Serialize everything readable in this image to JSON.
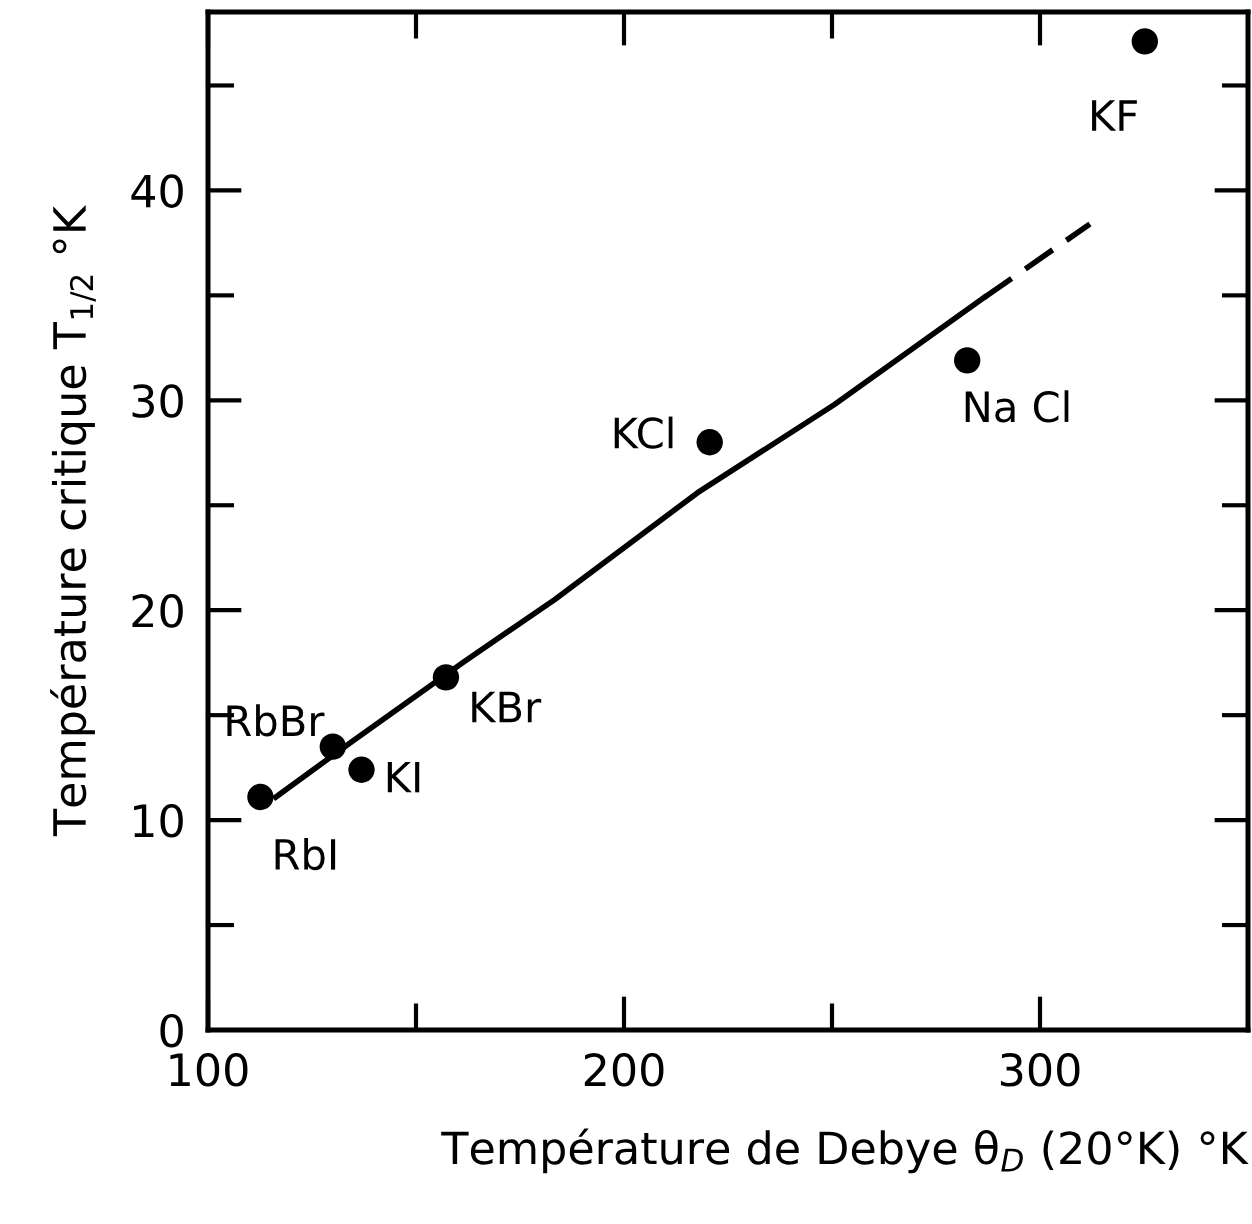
{
  "chart_data": {
    "type": "scatter",
    "xlabel": "Température de Debye θ$_{D}$ (20°K) °K",
    "ylabel": "Température critique T$_{1/2}$ °K",
    "xlim": [
      100,
      350
    ],
    "ylim": [
      0,
      48.5
    ],
    "xticks": [
      100,
      {
        "value": 150,
        "label": null
      },
      200,
      {
        "value": 250,
        "label": null
      },
      300
    ],
    "yticks": [
      0,
      {
        "value": 5,
        "label": null
      },
      10,
      {
        "value": 15,
        "label": null
      },
      20,
      {
        "value": 25,
        "label": null
      },
      30,
      {
        "value": 35,
        "label": null
      },
      40,
      {
        "value": 45,
        "label": null
      }
    ],
    "grid": false,
    "legend": false,
    "series": [
      {
        "color": "#000000",
        "marker": "circle",
        "x": [
          112.6,
          130,
          136.9,
          157.2,
          220.6,
          282.5,
          325.2
        ],
        "values": [
          11.1,
          13.5,
          12.4,
          16.8,
          28.0,
          31.9,
          47.1
        ]
      },
      {
        "type": "line",
        "color": "#000000",
        "line_style": "solid",
        "marker": "none",
        "x": [
          116.3,
          134.3,
          161.2,
          183.3,
          217.7,
          250.6,
          286.6
        ],
        "values": [
          11.1,
          13.7,
          17.5,
          20.5,
          25.6,
          29.8,
          34.9
        ]
      },
      {
        "type": "line",
        "color": "#000000",
        "line_style": "dashed",
        "marker": "none",
        "x": [
          286.6,
          312
        ],
        "values": [
          34.9,
          38.4
        ]
      }
    ],
    "annotations": [
      {
        "text": "RbI",
        "x": 112.6,
        "y": 11.1
      },
      {
        "text": "RbBr",
        "x": 130,
        "y": 13.5
      },
      {
        "text": "KI",
        "x": 136.9,
        "y": 12.4
      },
      {
        "text": "KBr",
        "x": 157.2,
        "y": 16.8
      },
      {
        "text": "KCl",
        "x": 220.6,
        "y": 28.0
      },
      {
        "text": "Na Cl",
        "x": 282.5,
        "y": 31.9
      },
      {
        "text": "KF",
        "x": 325.2,
        "y": 47.1
      }
    ]
  }
}
